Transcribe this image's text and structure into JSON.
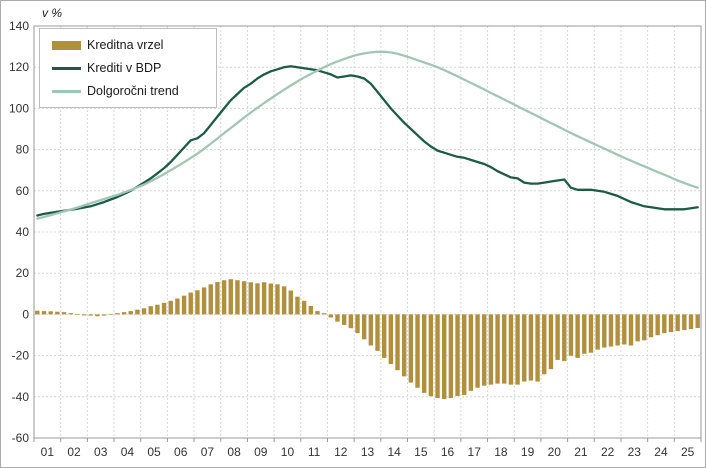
{
  "chart_data": {
    "type": "bar",
    "title": "",
    "ylabel": "v %",
    "xlabel": "",
    "categories": [
      "01",
      "02",
      "03",
      "04",
      "05",
      "06",
      "07",
      "08",
      "09",
      "10",
      "11",
      "12",
      "13",
      "14",
      "15",
      "16",
      "17",
      "18",
      "19",
      "20",
      "21",
      "22",
      "23",
      "24",
      "25"
    ],
    "points_per_category": 4,
    "ylim": [
      -60,
      140
    ],
    "ytick_step": 20,
    "grid": true,
    "legend_position": "top-left",
    "colors": {
      "bar": "#b0903f",
      "credit_line": "#1e5b46",
      "trend_line": "#a3c6b4",
      "grid": "#d6d6d6",
      "axis": "#9a9a9a",
      "tick_text": "#333333"
    },
    "series": [
      {
        "name": "Kreditna vrzel",
        "type": "bar",
        "color": "#b0903f",
        "values": [
          1.8,
          1.6,
          1.5,
          1.3,
          1.1,
          0.6,
          -0.3,
          -0.5,
          -0.6,
          -0.9,
          -0.6,
          -0.3,
          0.6,
          1.1,
          1.6,
          2.3,
          3.0,
          4.0,
          4.7,
          5.6,
          6.6,
          7.7,
          9.1,
          10.6,
          11.7,
          13.1,
          14.6,
          15.7,
          16.6,
          17.1,
          16.6,
          16.1,
          15.6,
          15.1,
          15.6,
          15.0,
          14.6,
          13.6,
          11.6,
          8.6,
          6.6,
          4.1,
          1.6,
          0.6,
          -1.5,
          -3.5,
          -5.1,
          -6.7,
          -9.1,
          -12.1,
          -15.1,
          -17.7,
          -21.1,
          -24.1,
          -27.1,
          -30.1,
          -33.1,
          -35.6,
          -38.1,
          -39.7,
          -40.6,
          -41.1,
          -40.6,
          -39.6,
          -39.1,
          -37.1,
          -35.6,
          -34.6,
          -34.1,
          -33.6,
          -33.6,
          -34.1,
          -34.1,
          -32.6,
          -32.1,
          -32.6,
          -29.1,
          -26.6,
          -22.1,
          -22.6,
          -20.1,
          -21.1,
          -19.1,
          -18.6,
          -17.1,
          -16.1,
          -15.6,
          -15.1,
          -14.6,
          -15.1,
          -13.1,
          -12.6,
          -11.1,
          -10.1,
          -9.1,
          -8.6,
          -8.1,
          -7.6,
          -7.1,
          -6.6
        ]
      },
      {
        "name": "Krediti v BDP",
        "type": "line",
        "color": "#1e5b46",
        "values": [
          48.0,
          48.8,
          49.3,
          49.8,
          50.3,
          50.8,
          51.3,
          51.9,
          52.5,
          53.5,
          54.5,
          55.8,
          57.0,
          58.5,
          60.0,
          62.0,
          64.0,
          66.0,
          68.5,
          71.0,
          74.0,
          77.5,
          81.0,
          84.5,
          85.5,
          88.0,
          92.0,
          96.0,
          100.0,
          104.0,
          107.0,
          110.0,
          112.0,
          114.5,
          116.5,
          118.0,
          119.0,
          120.0,
          120.5,
          120.0,
          119.5,
          119.0,
          118.5,
          117.5,
          116.5,
          115.0,
          115.5,
          116.0,
          115.5,
          114.5,
          112.0,
          108.0,
          104.0,
          100.0,
          96.5,
          93.0,
          90.0,
          87.0,
          84.0,
          81.5,
          79.5,
          78.5,
          77.5,
          76.5,
          76.0,
          75.0,
          74.0,
          73.0,
          71.5,
          69.5,
          68.0,
          66.5,
          66.0,
          64.0,
          63.5,
          63.5,
          64.0,
          64.5,
          65.0,
          65.5,
          61.5,
          60.5,
          60.5,
          60.5,
          60.0,
          59.5,
          58.5,
          57.5,
          56.0,
          54.5,
          53.5,
          52.5,
          52.0,
          51.5,
          51.0,
          51.0,
          51.0,
          51.0,
          51.5,
          52.0
        ]
      },
      {
        "name": "Dolgoročni trend",
        "type": "line",
        "color": "#a3c6b4",
        "values": [
          46.5,
          47.3,
          48.2,
          49.1,
          50.0,
          50.9,
          51.9,
          52.9,
          54.0,
          55.0,
          56.0,
          57.0,
          58.0,
          59.2,
          60.4,
          61.7,
          63.0,
          64.6,
          66.3,
          68.1,
          70.0,
          71.9,
          73.9,
          75.9,
          78.0,
          80.4,
          82.9,
          85.4,
          88.0,
          90.5,
          93.0,
          95.5,
          98.0,
          100.3,
          102.6,
          104.8,
          107.0,
          109.1,
          111.1,
          113.1,
          115.0,
          116.7,
          118.4,
          120.0,
          121.5,
          122.8,
          124.0,
          125.1,
          126.0,
          126.7,
          127.2,
          127.5,
          127.5,
          127.2,
          126.5,
          125.6,
          124.5,
          123.4,
          122.3,
          121.2,
          120.0,
          118.6,
          117.1,
          115.6,
          114.0,
          112.4,
          110.8,
          109.2,
          107.5,
          105.9,
          104.3,
          102.7,
          101.0,
          99.4,
          97.8,
          96.2,
          94.5,
          92.9,
          91.3,
          89.7,
          88.0,
          86.5,
          85.0,
          83.5,
          82.0,
          80.5,
          79.0,
          77.5,
          76.0,
          74.6,
          73.2,
          71.9,
          70.5,
          69.1,
          67.8,
          66.4,
          65.0,
          63.8,
          62.6,
          61.5
        ]
      }
    ]
  }
}
